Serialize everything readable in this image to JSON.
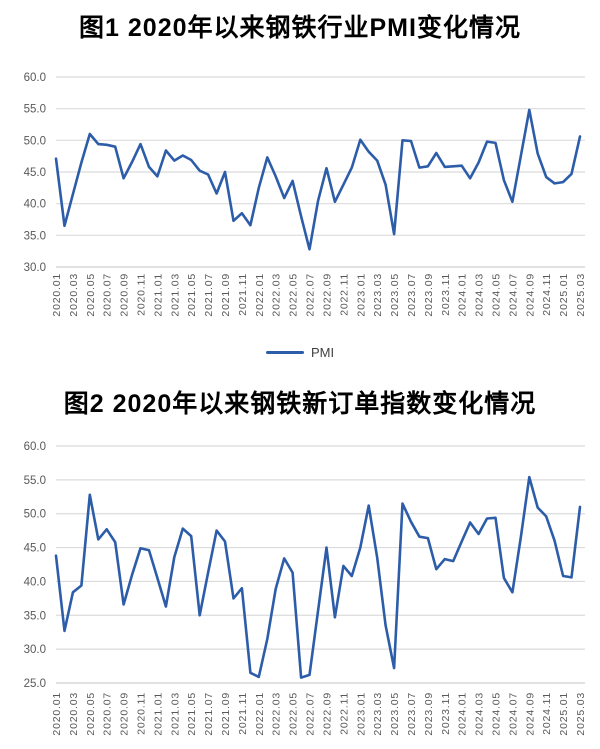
{
  "colors": {
    "line": "#2d5da9",
    "gridline": "#dbdbdb",
    "axis_line": "#cfcfcf",
    "axis_text": "#595959",
    "title_text": "#000000",
    "legend_text": "#404040",
    "background": "#ffffff"
  },
  "figure1": {
    "title": "图1  2020年以来钢铁行业PMI变化情况",
    "legend_label": "PMI"
  },
  "figure2": {
    "title": "图2  2020年以来钢铁新订单指数变化情况"
  },
  "chart_data": [
    {
      "type": "line",
      "title": "图1 2020年以来钢铁行业PMI变化情况",
      "series_name": "PMI",
      "legend_position": "bottom",
      "grid": true,
      "ylim": [
        30,
        60
      ],
      "ytick_step": 5,
      "x_tick_every": 2,
      "x": [
        "2020.01",
        "2020.02",
        "2020.03",
        "2020.04",
        "2020.05",
        "2020.06",
        "2020.07",
        "2020.08",
        "2020.09",
        "2020.10",
        "2020.11",
        "2020.12",
        "2021.01",
        "2021.02",
        "2021.03",
        "2021.04",
        "2021.05",
        "2021.06",
        "2021.07",
        "2021.08",
        "2021.09",
        "2021.10",
        "2021.11",
        "2021.12",
        "2022.01",
        "2022.02",
        "2022.03",
        "2022.04",
        "2022.05",
        "2022.06",
        "2022.07",
        "2022.08",
        "2022.09",
        "2022.10",
        "2022.11",
        "2022.12",
        "2023.01",
        "2023.02",
        "2023.03",
        "2023.04",
        "2023.05",
        "2023.06",
        "2023.07",
        "2023.08",
        "2023.09",
        "2023.10",
        "2023.11",
        "2023.12",
        "2024.01",
        "2024.02",
        "2024.03",
        "2024.04",
        "2024.05",
        "2024.06",
        "2024.07",
        "2024.08",
        "2024.09",
        "2024.10",
        "2024.11",
        "2024.12",
        "2025.01",
        "2025.02",
        "2025.03"
      ],
      "values": [
        47.1,
        36.5,
        41.5,
        46.5,
        51.0,
        49.4,
        49.3,
        49.0,
        44.0,
        46.6,
        49.4,
        45.8,
        44.3,
        48.4,
        46.8,
        47.6,
        46.9,
        45.2,
        44.6,
        41.6,
        45.0,
        37.3,
        38.5,
        36.6,
        42.5,
        47.3,
        44.3,
        40.9,
        43.6,
        38.0,
        32.8,
        40.4,
        45.6,
        40.3,
        43.0,
        45.7,
        50.1,
        48.2,
        46.8,
        43.0,
        35.2,
        50.0,
        49.9,
        45.7,
        45.9,
        48.0,
        45.8,
        45.9,
        46.0,
        44.0,
        46.5,
        49.8,
        49.6,
        43.7,
        40.3,
        47.5,
        54.8,
        47.9,
        44.2,
        43.2,
        43.4,
        44.7,
        50.6
      ]
    },
    {
      "type": "line",
      "title": "图2 2020年以来钢铁新订单指数变化情况",
      "series_name": "新订单指数",
      "legend_position": "none",
      "grid": true,
      "ylim": [
        25,
        60
      ],
      "ytick_step": 5,
      "x_tick_every": 2,
      "x": [
        "2020.01",
        "2020.02",
        "2020.03",
        "2020.04",
        "2020.05",
        "2020.06",
        "2020.07",
        "2020.08",
        "2020.09",
        "2020.10",
        "2020.11",
        "2020.12",
        "2021.01",
        "2021.02",
        "2021.03",
        "2021.04",
        "2021.05",
        "2021.06",
        "2021.07",
        "2021.08",
        "2021.09",
        "2021.10",
        "2021.11",
        "2021.12",
        "2022.01",
        "2022.02",
        "2022.03",
        "2022.04",
        "2022.05",
        "2022.06",
        "2022.07",
        "2022.08",
        "2022.09",
        "2022.10",
        "2022.11",
        "2022.12",
        "2023.01",
        "2023.02",
        "2023.03",
        "2023.04",
        "2023.05",
        "2023.06",
        "2023.07",
        "2023.08",
        "2023.09",
        "2023.10",
        "2023.11",
        "2023.12",
        "2024.01",
        "2024.02",
        "2024.03",
        "2024.04",
        "2024.05",
        "2024.06",
        "2024.07",
        "2024.08",
        "2024.09",
        "2024.10",
        "2024.11",
        "2024.12",
        "2025.01",
        "2025.02",
        "2025.03"
      ],
      "values": [
        43.8,
        32.7,
        38.4,
        39.4,
        52.8,
        46.2,
        47.7,
        45.8,
        36.6,
        41.0,
        44.9,
        44.6,
        40.5,
        36.3,
        43.6,
        47.8,
        46.7,
        35.0,
        41.3,
        47.5,
        45.9,
        37.5,
        39.0,
        26.5,
        25.9,
        31.5,
        38.9,
        43.4,
        41.3,
        25.8,
        26.2,
        35.6,
        45.0,
        34.7,
        42.3,
        40.8,
        45.0,
        51.2,
        43.5,
        33.5,
        27.2,
        51.5,
        48.8,
        46.6,
        46.4,
        41.8,
        43.3,
        43.0,
        45.9,
        48.7,
        47.0,
        49.3,
        49.4,
        40.5,
        38.4,
        46.5,
        55.4,
        50.9,
        49.6,
        46.0,
        40.8,
        40.6,
        51.0
      ]
    }
  ]
}
